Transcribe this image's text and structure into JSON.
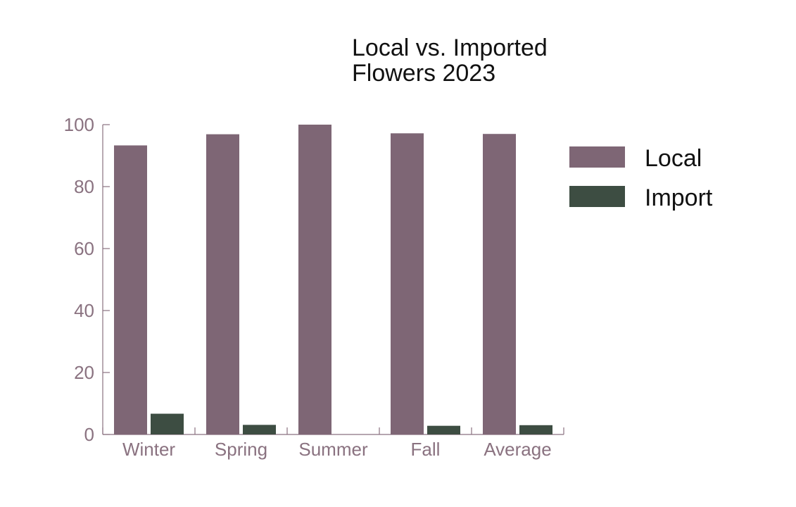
{
  "colors": {
    "local": "#7e6675",
    "import": "#3d4d42",
    "axis": "#8a7280",
    "title": "#111111",
    "legend_text": "#111111"
  },
  "chart_data": {
    "type": "bar",
    "title_lines": [
      "Local vs. Imported",
      "Flowers 2023"
    ],
    "categories": [
      "Winter",
      "Spring",
      "Summer",
      "Fall",
      "Average"
    ],
    "series": [
      {
        "name": "Local",
        "values": [
          93.3,
          96.9,
          100,
          97.2,
          97.0
        ]
      },
      {
        "name": "Import",
        "values": [
          6.7,
          3.1,
          0,
          2.8,
          3.0
        ]
      }
    ],
    "xlabel": "",
    "ylabel": "",
    "ylim": [
      0,
      100
    ],
    "yticks": [
      0,
      20,
      40,
      60,
      80,
      100
    ],
    "grid": false,
    "legend_position": "right"
  }
}
